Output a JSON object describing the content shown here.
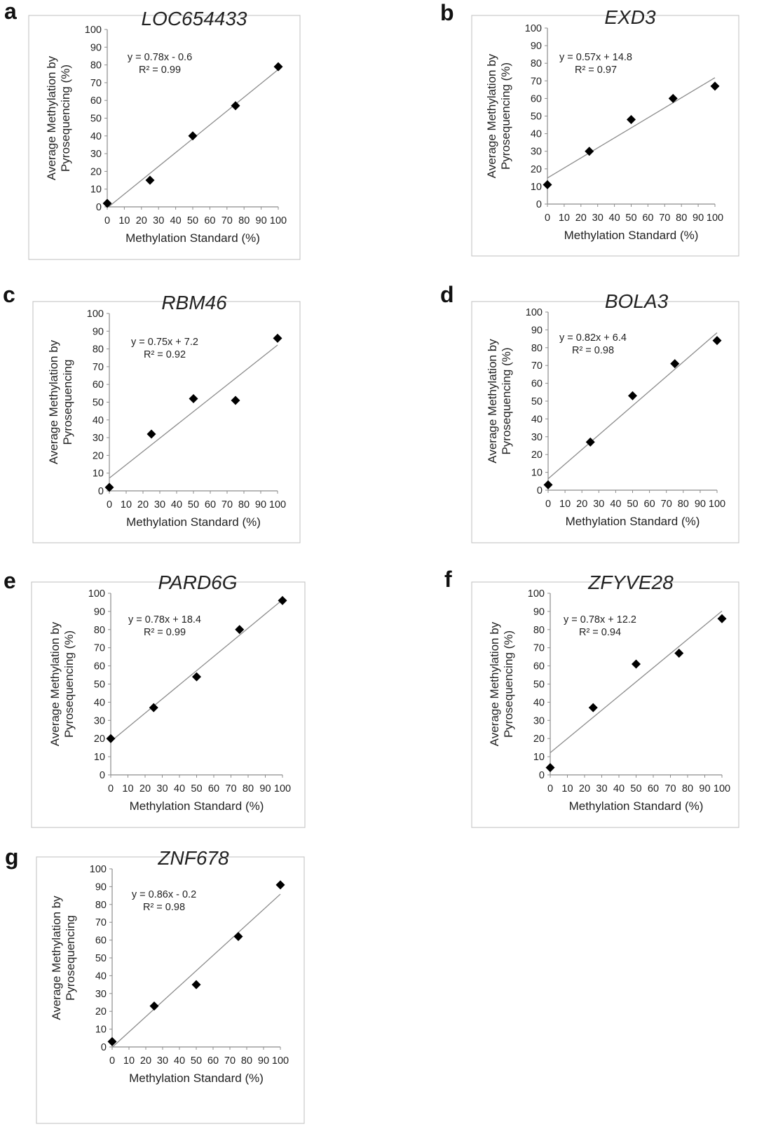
{
  "colors": {
    "marker": "#000000",
    "trendline": "#8c8c8c",
    "axis": "#8c8c8c",
    "frame": "#bfbfbf"
  },
  "chart_data": [
    {
      "panel": "a",
      "type": "scatter",
      "title": "LOC654433",
      "xlabel": "Methylation Standard (%)",
      "ylabel": [
        "Average Methylation by",
        "Pyrosequencing (%)"
      ],
      "xlim": [
        0,
        100
      ],
      "ylim": [
        0,
        100
      ],
      "xticks": [
        0,
        10,
        20,
        30,
        40,
        50,
        60,
        70,
        80,
        90,
        100
      ],
      "yticks": [
        0,
        10,
        20,
        30,
        40,
        50,
        60,
        70,
        80,
        90,
        100
      ],
      "x": [
        0,
        25,
        50,
        75,
        100
      ],
      "y": [
        2,
        15,
        40,
        57,
        79
      ],
      "trendline": {
        "slope": 0.78,
        "intercept": -0.6
      },
      "equation": "y = 0.78x - 0.6",
      "r2": "R² = 0.99",
      "grid": false,
      "legend": "none"
    },
    {
      "panel": "b",
      "type": "scatter",
      "title": "EXD3",
      "xlabel": "Methylation Standard (%)",
      "ylabel": [
        "Average Methylation by",
        "Pyrosequencing (%)"
      ],
      "xlim": [
        0,
        100
      ],
      "ylim": [
        0,
        100
      ],
      "xticks": [
        0,
        10,
        20,
        30,
        40,
        50,
        60,
        70,
        80,
        90,
        100
      ],
      "yticks": [
        0,
        10,
        20,
        30,
        40,
        50,
        60,
        70,
        80,
        90,
        100
      ],
      "x": [
        0,
        25,
        50,
        75,
        100
      ],
      "y": [
        11,
        30,
        48,
        60,
        67
      ],
      "trendline": {
        "slope": 0.57,
        "intercept": 14.8
      },
      "equation": "y = 0.57x + 14.8",
      "r2": "R² = 0.97",
      "grid": false,
      "legend": "none"
    },
    {
      "panel": "c",
      "type": "scatter",
      "title": "RBM46",
      "xlabel": "Methylation Standard (%)",
      "ylabel": [
        "Average Methylation by",
        "Pyrosequencing"
      ],
      "xlim": [
        0,
        100
      ],
      "ylim": [
        0,
        100
      ],
      "xticks": [
        0,
        10,
        20,
        30,
        40,
        50,
        60,
        70,
        80,
        90,
        100
      ],
      "yticks": [
        0,
        10,
        20,
        30,
        40,
        50,
        60,
        70,
        80,
        90,
        100
      ],
      "x": [
        0,
        25,
        50,
        75,
        100
      ],
      "y": [
        2,
        32,
        52,
        51,
        86
      ],
      "trendline": {
        "slope": 0.75,
        "intercept": 7.2
      },
      "equation": "y = 0.75x + 7.2",
      "r2": "R² = 0.92",
      "grid": false,
      "legend": "none"
    },
    {
      "panel": "d",
      "type": "scatter",
      "title": "BOLA3",
      "xlabel": "Methylation Standard (%)",
      "ylabel": [
        "Average Methylation by",
        "Pyrosequencing (%)"
      ],
      "xlim": [
        0,
        100
      ],
      "ylim": [
        0,
        100
      ],
      "xticks": [
        0,
        10,
        20,
        30,
        40,
        50,
        60,
        70,
        80,
        90,
        100
      ],
      "yticks": [
        0,
        10,
        20,
        30,
        40,
        50,
        60,
        70,
        80,
        90,
        100
      ],
      "x": [
        0,
        25,
        50,
        75,
        100
      ],
      "y": [
        3,
        27,
        53,
        71,
        84
      ],
      "trendline": {
        "slope": 0.82,
        "intercept": 6.4
      },
      "equation": "y = 0.82x + 6.4",
      "r2": "R² = 0.98",
      "grid": false,
      "legend": "none"
    },
    {
      "panel": "e",
      "type": "scatter",
      "title": "PARD6G",
      "xlabel": "Methylation Standard (%)",
      "ylabel": [
        "Average Methylation by",
        "Pyrosequencing (%)"
      ],
      "xlim": [
        0,
        100
      ],
      "ylim": [
        0,
        100
      ],
      "xticks": [
        0,
        10,
        20,
        30,
        40,
        50,
        60,
        70,
        80,
        90,
        100
      ],
      "yticks": [
        0,
        10,
        20,
        30,
        40,
        50,
        60,
        70,
        80,
        90,
        100
      ],
      "x": [
        0,
        25,
        50,
        75,
        100
      ],
      "y": [
        20,
        37,
        54,
        80,
        96
      ],
      "trendline": {
        "slope": 0.78,
        "intercept": 18.4
      },
      "equation": "y = 0.78x + 18.4",
      "r2": "R² = 0.99",
      "grid": false,
      "legend": "none"
    },
    {
      "panel": "f",
      "type": "scatter",
      "title": "ZFYVE28",
      "xlabel": "Methylation Standard (%)",
      "ylabel": [
        "Average Methylation by",
        "Pyrosequencing (%)"
      ],
      "xlim": [
        0,
        100
      ],
      "ylim": [
        0,
        100
      ],
      "xticks": [
        0,
        10,
        20,
        30,
        40,
        50,
        60,
        70,
        80,
        90,
        100
      ],
      "yticks": [
        0,
        10,
        20,
        30,
        40,
        50,
        60,
        70,
        80,
        90,
        100
      ],
      "x": [
        0,
        25,
        50,
        75,
        100
      ],
      "y": [
        4,
        37,
        61,
        67,
        86
      ],
      "trendline": {
        "slope": 0.78,
        "intercept": 12.2
      },
      "equation": "y = 0.78x + 12.2",
      "r2": "R² = 0.94",
      "grid": false,
      "legend": "none"
    },
    {
      "panel": "g",
      "type": "scatter",
      "title": "ZNF678",
      "xlabel": "Methylation Standard (%)",
      "ylabel": [
        "Average Methylation by",
        "Pyrosequencing"
      ],
      "xlim": [
        0,
        100
      ],
      "ylim": [
        0,
        100
      ],
      "xticks": [
        0,
        10,
        20,
        30,
        40,
        50,
        60,
        70,
        80,
        90,
        100
      ],
      "yticks": [
        0,
        10,
        20,
        30,
        40,
        50,
        60,
        70,
        80,
        90,
        100
      ],
      "x": [
        0,
        25,
        50,
        75,
        100
      ],
      "y": [
        3,
        23,
        35,
        62,
        91
      ],
      "trendline": {
        "slope": 0.86,
        "intercept": -0.2
      },
      "equation": "y = 0.86x - 0.2",
      "r2": "R² = 0.98",
      "grid": false,
      "legend": "none"
    }
  ]
}
